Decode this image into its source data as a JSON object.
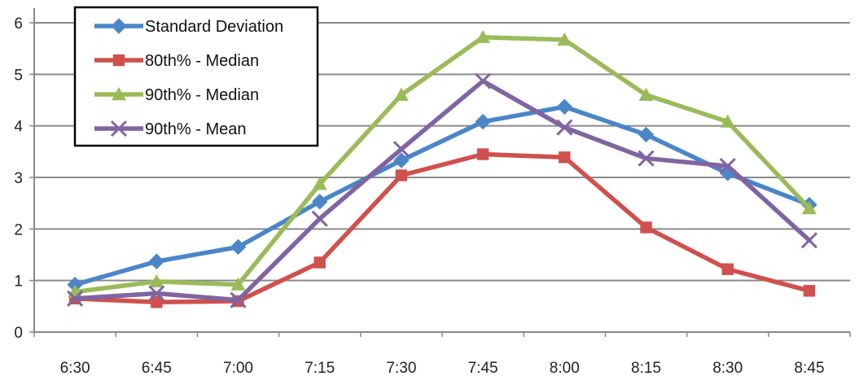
{
  "chart_data": {
    "type": "line",
    "title": "",
    "xlabel": "",
    "ylabel": "",
    "categories": [
      "6:30",
      "6:45",
      "7:00",
      "7:15",
      "7:30",
      "7:45",
      "8:00",
      "8:15",
      "8:30",
      "8:45"
    ],
    "ylim": [
      0,
      6
    ],
    "yticks": [
      "0",
      "1",
      "2",
      "3",
      "4",
      "5",
      "6"
    ],
    "grid": "horizontal",
    "legend": "top-left",
    "series": [
      {
        "name": "Standard Deviation",
        "color": "#4a86c8",
        "marker": "diamond",
        "values": [
          0.92,
          1.37,
          1.65,
          2.53,
          3.33,
          4.08,
          4.37,
          3.83,
          3.08,
          2.47
        ]
      },
      {
        "name": "80th% - Median",
        "color": "#cf504c",
        "marker": "square",
        "values": [
          0.65,
          0.58,
          0.6,
          1.35,
          3.04,
          3.45,
          3.39,
          2.03,
          1.22,
          0.8
        ]
      },
      {
        "name": "90th% - Median",
        "color": "#9bbb59",
        "marker": "triangle",
        "values": [
          0.78,
          0.98,
          0.92,
          2.87,
          4.6,
          5.72,
          5.67,
          4.6,
          4.08,
          2.4
        ]
      },
      {
        "name": "90th% - Mean",
        "color": "#8064a2",
        "marker": "x",
        "values": [
          0.65,
          0.75,
          0.62,
          2.2,
          3.55,
          4.87,
          3.97,
          3.37,
          3.22,
          1.78
        ]
      }
    ]
  }
}
